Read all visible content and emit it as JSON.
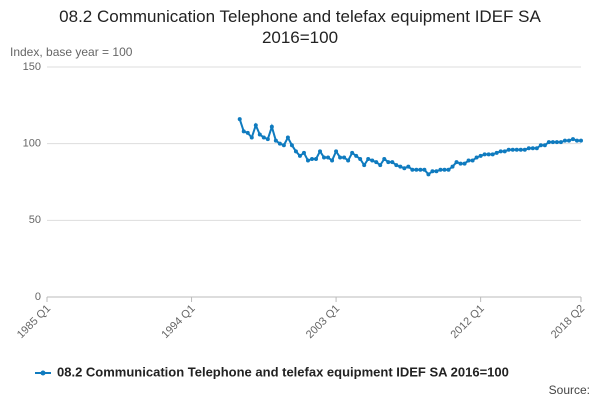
{
  "chart_data": {
    "type": "line",
    "title": "08.2 Communication Telephone and telefax equipment IDEF SA 2016=100",
    "subtitle": "Index, base year = 100",
    "source": "Source:",
    "categories": [
      "1985 Q1",
      null,
      null,
      null,
      null,
      null,
      null,
      null,
      null,
      null,
      null,
      null,
      null,
      null,
      null,
      null,
      null,
      null,
      null,
      null,
      null,
      null,
      null,
      null,
      null,
      null,
      null,
      null,
      null,
      null,
      null,
      null,
      null,
      null,
      null,
      null,
      "1994 Q1",
      null,
      null,
      null,
      null,
      null,
      null,
      null,
      null,
      null,
      null,
      null,
      null,
      null,
      null,
      null,
      null,
      null,
      null,
      null,
      null,
      null,
      null,
      null,
      null,
      null,
      null,
      null,
      null,
      null,
      null,
      null,
      null,
      null,
      null,
      null,
      "2003 Q1",
      null,
      null,
      null,
      null,
      null,
      null,
      null,
      null,
      null,
      null,
      null,
      null,
      null,
      null,
      null,
      null,
      null,
      null,
      null,
      null,
      null,
      null,
      null,
      null,
      null,
      null,
      null,
      null,
      null,
      null,
      null,
      null,
      null,
      null,
      null,
      "2012 Q1",
      null,
      null,
      null,
      null,
      null,
      null,
      null,
      null,
      null,
      null,
      null,
      null,
      null,
      null,
      null,
      null,
      null,
      null,
      null,
      null,
      null,
      null,
      null,
      null,
      "2018 Q2"
    ],
    "series": [
      {
        "name": "08.2 Communication Telephone and telefax equipment IDEF SA 2016=100",
        "color": "#0f7bbf",
        "values": [
          null,
          null,
          null,
          null,
          null,
          null,
          null,
          null,
          null,
          null,
          null,
          null,
          null,
          null,
          null,
          null,
          null,
          null,
          null,
          null,
          null,
          null,
          null,
          null,
          null,
          null,
          null,
          null,
          null,
          null,
          null,
          null,
          null,
          null,
          null,
          null,
          null,
          null,
          null,
          null,
          null,
          null,
          null,
          null,
          null,
          null,
          null,
          null,
          116,
          108,
          107,
          104,
          112,
          106,
          104,
          103,
          111,
          102,
          100,
          99,
          104,
          99,
          95,
          92,
          94,
          89,
          90,
          90,
          95,
          91,
          91,
          89,
          95,
          91,
          91,
          89,
          94,
          92,
          90,
          86,
          90,
          89,
          88,
          86,
          90,
          88,
          88,
          86,
          85,
          84,
          85,
          83,
          83,
          83,
          83,
          80,
          82,
          82,
          83,
          83,
          83,
          85,
          88,
          87,
          87,
          89,
          89,
          91,
          92,
          93,
          93,
          93,
          94,
          95,
          95,
          96,
          96,
          96,
          96,
          96,
          97,
          97,
          97,
          99,
          99,
          101,
          101,
          101,
          101,
          102,
          102,
          103,
          102,
          102
        ]
      }
    ],
    "ylim": [
      0,
      150
    ],
    "yticks": [
      0,
      50,
      100,
      150
    ],
    "grid": true
  }
}
